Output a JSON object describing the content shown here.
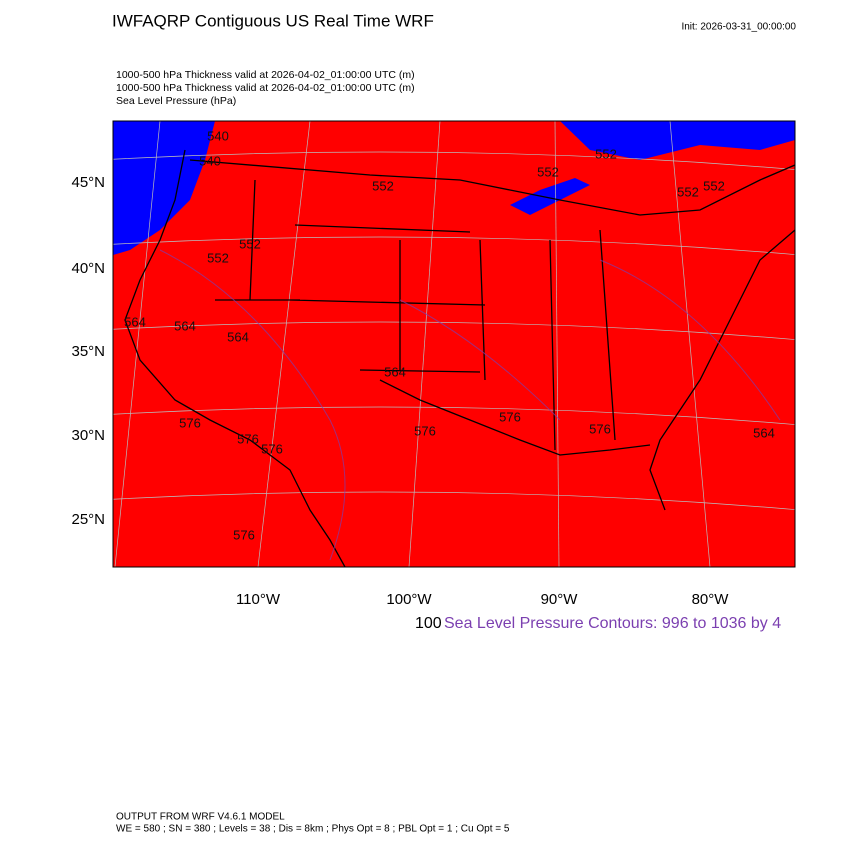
{
  "header": {
    "title": "IWFAQRP Contiguous US Real Time WRF",
    "init": "Init: 2026-03-31_00:00:00",
    "fields": [
      "1000-500 hPa Thickness valid at 2026-04-02_01:00:00 UTC   (m)",
      "1000-500 hPa Thickness valid at 2026-04-02_01:00:00 UTC   (m)",
      "Sea Level Pressure   (hPa)"
    ]
  },
  "map": {
    "lat_labels": [
      "45°N",
      "40°N",
      "35°N",
      "30°N",
      "25°N"
    ],
    "lon_labels": [
      "110°W",
      "100°W",
      "90°W",
      "80°W"
    ],
    "contour_labels": [
      "540",
      "540",
      "552",
      "552",
      "552",
      "564",
      "564",
      "564",
      "564",
      "576",
      "576",
      "576",
      "576",
      "576",
      "576",
      "564",
      "552",
      "552",
      "552",
      "576",
      "552"
    ],
    "hidden_label": "100",
    "contour_info": "Sea Level Pressure Contours: 996 to 1036 by 4"
  },
  "footer": {
    "model": "OUTPUT FROM WRF V4.6.1 MODEL",
    "settings": "WE = 580 ; SN = 380 ; Levels = 38 ; Dis = 8km ; Phys Opt = 8 ; PBL Opt = 1 ; Cu Opt = 5"
  }
}
